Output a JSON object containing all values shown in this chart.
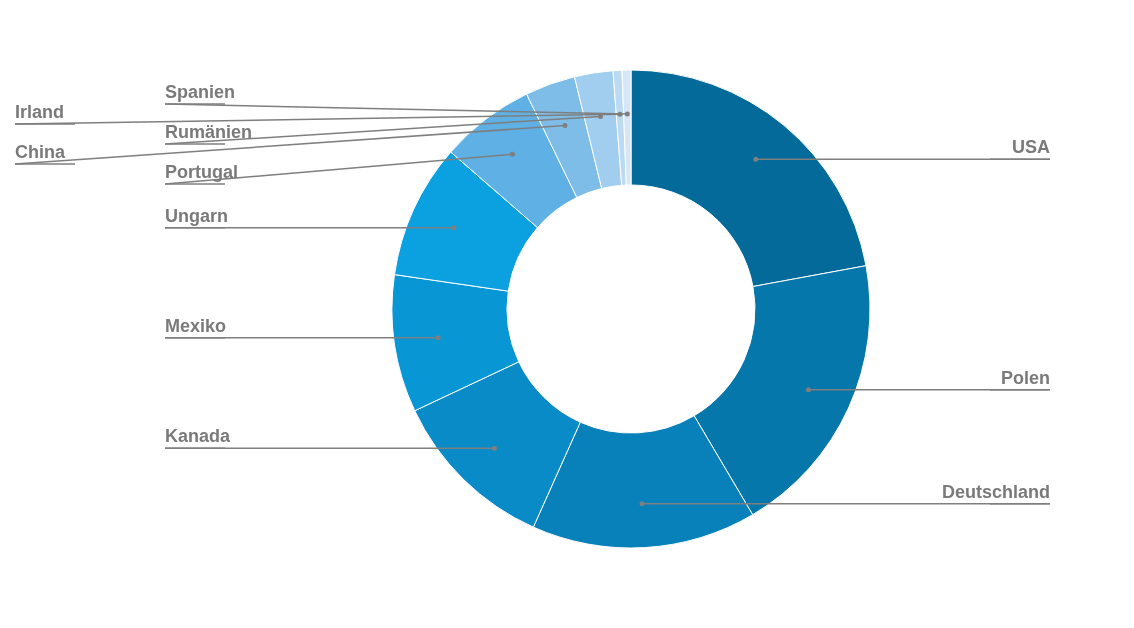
{
  "chart_data": {
    "type": "donut",
    "categories": [
      "USA",
      "Polen",
      "Deutschland",
      "Kanada",
      "Mexiko",
      "Ungarn",
      "Portugal",
      "China",
      "Rumänien",
      "Irland",
      "Spanien"
    ],
    "values": [
      22.1,
      19.4,
      15.2,
      11.3,
      9.3,
      9.1,
      6.4,
      3.4,
      2.6,
      0.6,
      0.6
    ],
    "colors": [
      "#036a9a",
      "#0677aa",
      "#0881bb",
      "#088bc7",
      "#0996d4",
      "#0ba0e0",
      "#5eb0e5",
      "#7fbde9",
      "#a1cdef",
      "#bcdaf2",
      "#d5e7f6"
    ]
  }
}
